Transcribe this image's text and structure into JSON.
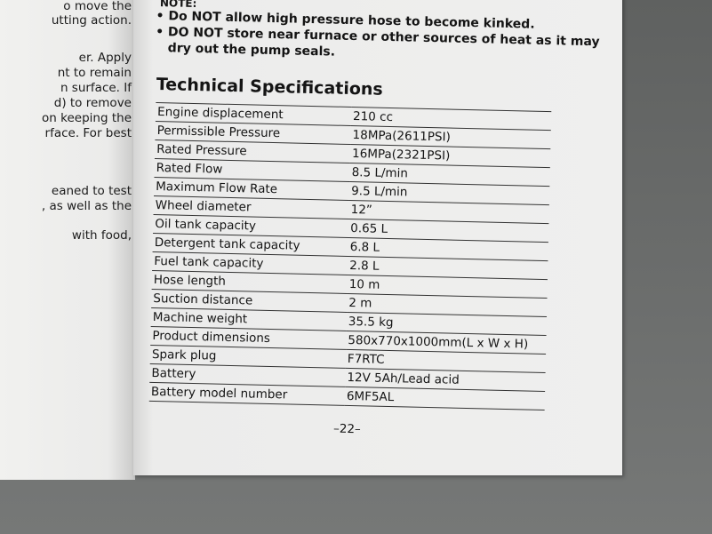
{
  "left_page": {
    "lines": [
      "o move the",
      "utting action.",
      "er. Apply",
      "nt to remain",
      "n surface. If",
      "d) to remove",
      "on keeping the",
      "rface. For best",
      "eaned to test",
      ", as well as the",
      "with food,"
    ]
  },
  "note": {
    "label": "NOTE:",
    "bullets": [
      "Do NOT allow high pressure hose to become kinked.",
      "DO NOT store near furnace or other sources of heat as it may",
      "dry out the pump seals."
    ]
  },
  "title": "Technical Specifications",
  "specs": [
    {
      "name": "Engine displacement",
      "value": "210 cc"
    },
    {
      "name": "Permissible Pressure",
      "value": "18MPa(2611PSI)"
    },
    {
      "name": "Rated Pressure",
      "value": "16MPa(2321PSI)"
    },
    {
      "name": "Rated Flow",
      "value": "8.5 L/min"
    },
    {
      "name": "Maximum Flow Rate",
      "value": "9.5 L/min"
    },
    {
      "name": "Wheel diameter",
      "value": "12”"
    },
    {
      "name": "Oil tank capacity",
      "value": "0.65 L"
    },
    {
      "name": "Detergent tank capacity",
      "value": "6.8 L"
    },
    {
      "name": "Fuel tank capacity",
      "value": "2.8 L"
    },
    {
      "name": "Hose length",
      "value": "10 m"
    },
    {
      "name": "Suction distance",
      "value": "2 m"
    },
    {
      "name": "Machine weight",
      "value": "35.5 kg"
    },
    {
      "name": "Product dimensions",
      "value": "580x770x1000mm(L x W x H)"
    },
    {
      "name": "Spark plug",
      "value": "F7RTC"
    },
    {
      "name": "Battery",
      "value": "12V 5Ah/Lead acid"
    },
    {
      "name": "Battery model number",
      "value": "6MF5AL"
    }
  ],
  "page_number": "–22–"
}
